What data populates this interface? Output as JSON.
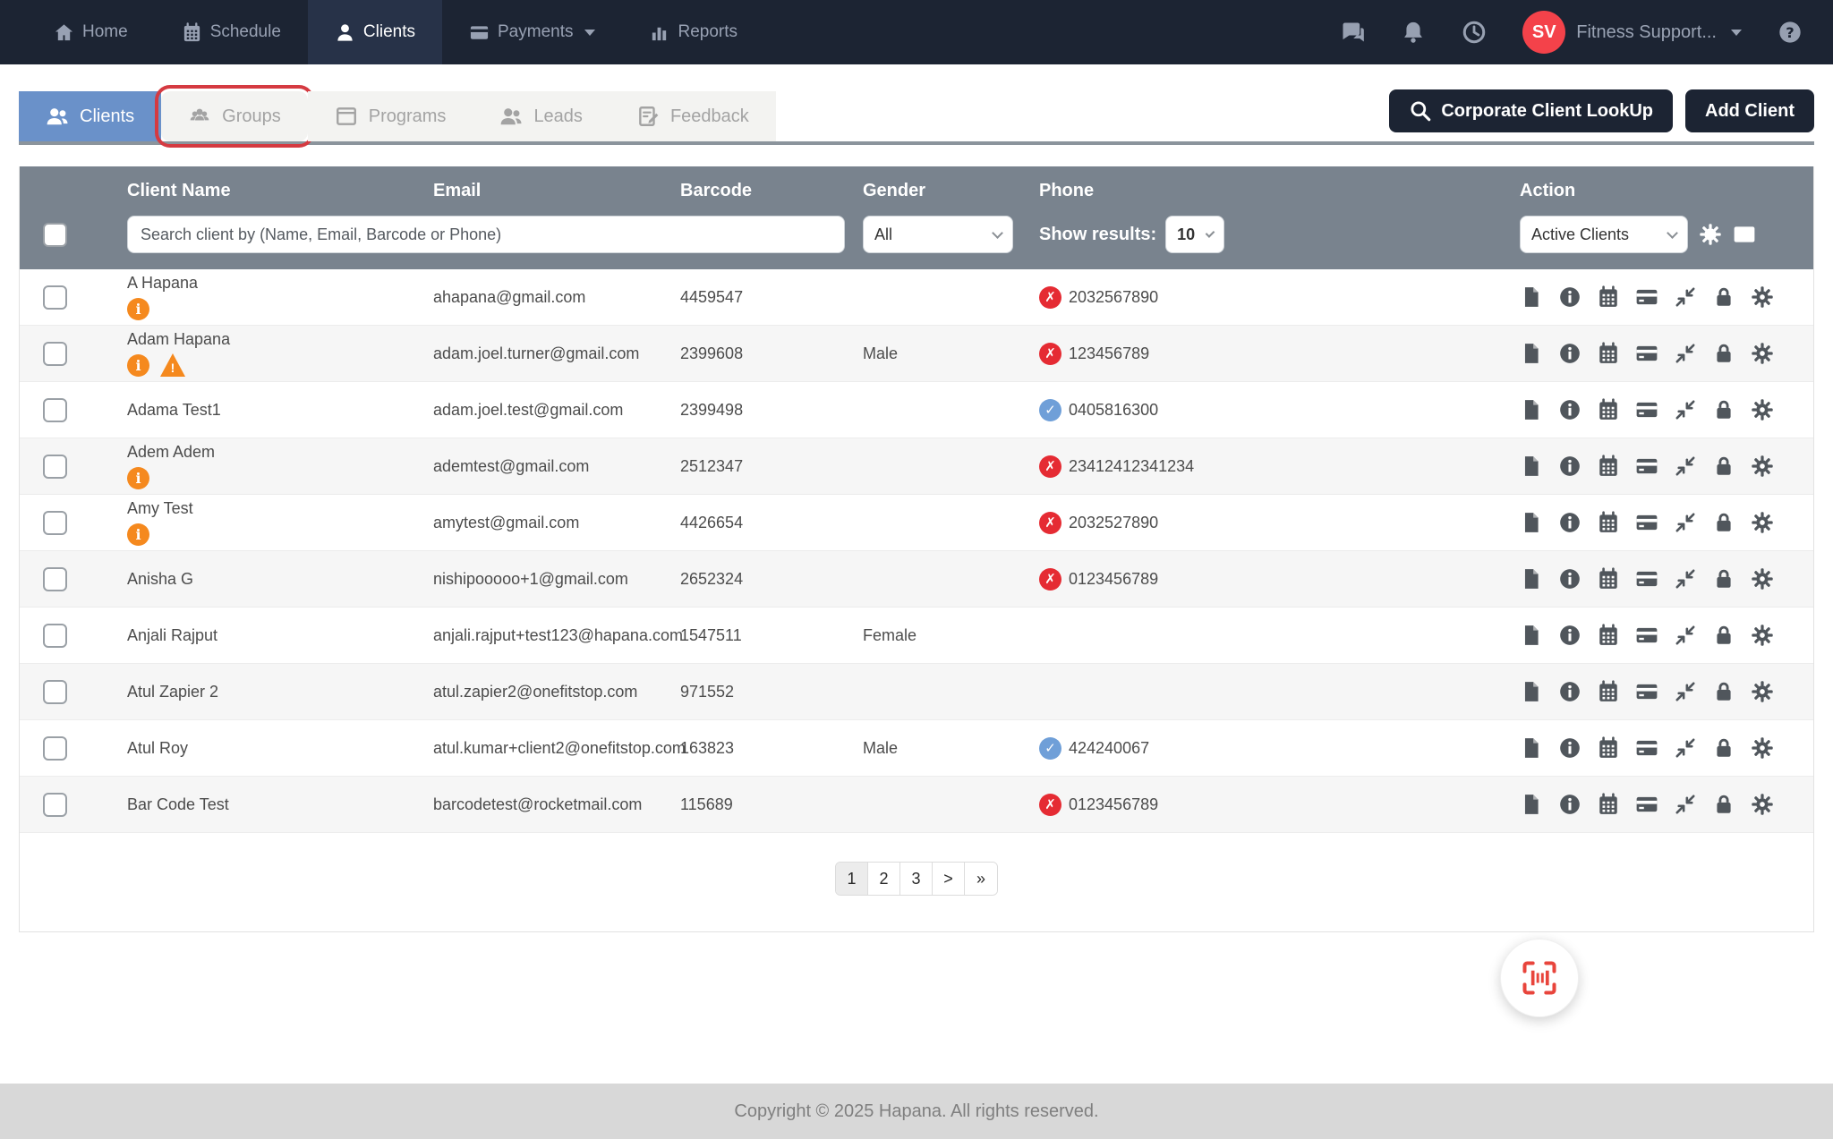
{
  "nav": {
    "items": [
      {
        "label": "Home",
        "icon": "home",
        "active": false,
        "caret": false
      },
      {
        "label": "Schedule",
        "icon": "calendar",
        "active": false,
        "caret": false
      },
      {
        "label": "Clients",
        "icon": "person",
        "active": true,
        "caret": false
      },
      {
        "label": "Payments",
        "icon": "card",
        "active": false,
        "caret": true
      },
      {
        "label": "Reports",
        "icon": "chart",
        "active": false,
        "caret": false
      }
    ],
    "right_icons": [
      {
        "name": "chat-icon",
        "icon": "chat"
      },
      {
        "name": "bell-icon",
        "icon": "bell"
      },
      {
        "name": "clock-icon",
        "icon": "clock"
      }
    ],
    "user": {
      "initials": "SV",
      "name": "Fitness Support..."
    },
    "help_icon": "help"
  },
  "tabs": [
    {
      "label": "Clients",
      "icon": "users",
      "active": true,
      "annotated": false
    },
    {
      "label": "Groups",
      "icon": "group",
      "active": false,
      "annotated": true
    },
    {
      "label": "Programs",
      "icon": "window",
      "active": false,
      "annotated": false
    },
    {
      "label": "Leads",
      "icon": "users",
      "active": false,
      "annotated": false
    },
    {
      "label": "Feedback",
      "icon": "feedback",
      "active": false,
      "annotated": false
    }
  ],
  "toolbar": {
    "corporate_lookup_label": "Corporate Client LookUp",
    "add_client_label": "Add Client"
  },
  "table": {
    "columns": {
      "name": "Client Name",
      "email": "Email",
      "barcode": "Barcode",
      "gender": "Gender",
      "phone": "Phone",
      "action": "Action"
    },
    "search_placeholder": "Search client by (Name, Email, Barcode or Phone)",
    "gender_filter_value": "All",
    "show_results_label": "Show results:",
    "show_results_value": "10",
    "action_filter_value": "Active Clients",
    "action_icons": [
      "file",
      "info-circle",
      "calendar",
      "credit-card",
      "compress",
      "lock",
      "gear"
    ],
    "rows": [
      {
        "name": "A Hapana",
        "flags": [
          "info"
        ],
        "email": "ahapana@gmail.com",
        "barcode": "4459547",
        "gender": "",
        "phone": "2032567890",
        "phone_status": "invalid"
      },
      {
        "name": "Adam Hapana",
        "flags": [
          "info",
          "warning"
        ],
        "email": "adam.joel.turner@gmail.com",
        "barcode": "2399608",
        "gender": "Male",
        "phone": "123456789",
        "phone_status": "invalid"
      },
      {
        "name": "Adama Test1",
        "flags": [],
        "email": "adam.joel.test@gmail.com",
        "barcode": "2399498",
        "gender": "",
        "phone": "0405816300",
        "phone_status": "valid"
      },
      {
        "name": "Adem Adem",
        "flags": [
          "info"
        ],
        "email": "ademtest@gmail.com",
        "barcode": "2512347",
        "gender": "",
        "phone": "23412412341234",
        "phone_status": "invalid"
      },
      {
        "name": "Amy Test",
        "flags": [
          "info"
        ],
        "email": "amytest@gmail.com",
        "barcode": "4426654",
        "gender": "",
        "phone": "2032527890",
        "phone_status": "invalid"
      },
      {
        "name": "Anisha G",
        "flags": [],
        "email": "nishipooooo+1@gmail.com",
        "barcode": "2652324",
        "gender": "",
        "phone": "0123456789",
        "phone_status": "invalid"
      },
      {
        "name": "Anjali Rajput",
        "flags": [],
        "email": "anjali.rajput+test123@hapana.com",
        "barcode": "1547511",
        "gender": "Female",
        "phone": "",
        "phone_status": "none"
      },
      {
        "name": "Atul Zapier 2",
        "flags": [],
        "email": "atul.zapier2@onefitstop.com",
        "barcode": "971552",
        "gender": "",
        "phone": "",
        "phone_status": "none"
      },
      {
        "name": "Atul Roy",
        "flags": [],
        "email": "atul.kumar+client2@onefitstop.com",
        "barcode": "163823",
        "gender": "Male",
        "phone": "424240067",
        "phone_status": "valid"
      },
      {
        "name": "Bar Code Test",
        "flags": [],
        "email": "barcodetest@rocketmail.com",
        "barcode": "115689",
        "gender": "",
        "phone": "0123456789",
        "phone_status": "invalid"
      }
    ]
  },
  "pagination": [
    {
      "label": "1",
      "active": true
    },
    {
      "label": "2",
      "active": false
    },
    {
      "label": "3",
      "active": false
    },
    {
      "label": ">",
      "active": false
    },
    {
      "label": "»",
      "active": false
    }
  ],
  "footer": {
    "copyright": "Copyright © 2025 Hapana. All rights reserved."
  },
  "colors": {
    "nav_bg": "#1c2433",
    "nav_active_bg": "#273248",
    "accent_blue": "#6a91c9",
    "avatar_red": "#f4424a",
    "annotation_red": "#d53a41",
    "header_gray": "#79838e",
    "flag_orange": "#f5891e",
    "phone_invalid_red": "#e52b33",
    "phone_valid_blue": "#6f9fd8",
    "barcode_icon_red": "#e8453c"
  }
}
